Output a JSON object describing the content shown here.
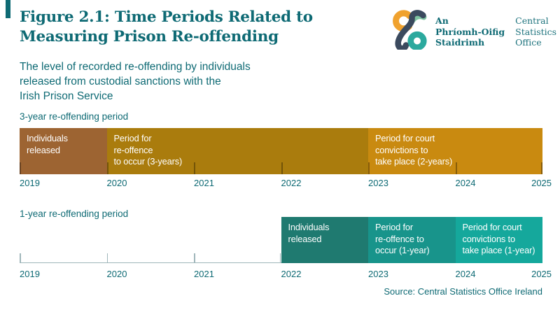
{
  "theme": {
    "teal": "#0E6A74",
    "teal_light": "#1D737D",
    "axis_color": "#9FB6BA",
    "bar_text_color": "#FFFFFF"
  },
  "header": {
    "title_line1": "Figure 2.1: Time Periods Related to",
    "title_line2": "Measuring Prison Re-offending",
    "subtitle_lines": [
      "The level of recorded re-offending by individuals",
      "released from custodial sanctions with the",
      "Irish Prison Service"
    ]
  },
  "logo": {
    "irish_lines": [
      "An",
      "Phríomh-Oifig",
      "Staidrimh"
    ],
    "english_lines": [
      "Central",
      "Statistics",
      "Office"
    ],
    "colors": {
      "orange": "#F0A22E",
      "navy": "#3B4A5E",
      "green": "#7FC4A1",
      "teal": "#2BA99E"
    }
  },
  "chart_data": {
    "type": "timeline-gantt",
    "title": "Figure 2.1: Time Periods Related to Measuring Prison Re-offending",
    "x_axis": {
      "range": [
        2019,
        2025
      ],
      "ticks": [
        2019,
        2020,
        2021,
        2022,
        2023,
        2024,
        2025
      ],
      "grid": false
    },
    "rows": [
      {
        "label": "3-year re-offending period",
        "ticks_on_bar": true,
        "segments": [
          {
            "label": "Individuals released",
            "lines": [
              "Individuals",
              "released"
            ],
            "start": 2019,
            "end": 2020,
            "color": "#9D6432"
          },
          {
            "label": "Period for re-offence to occur (3-years)",
            "lines": [
              "Period for",
              "re-offence",
              "to occur (3-years)"
            ],
            "start": 2020,
            "end": 2023,
            "color": "#AA7C0D"
          },
          {
            "label": "Period for court convictions to take place (2-years)",
            "lines": [
              "Period for court",
              "convictions to",
              "take place (2-years)"
            ],
            "start": 2023,
            "end": 2025,
            "color": "#C98A10"
          }
        ]
      },
      {
        "label": "1-year re-offending period",
        "ticks_on_bar": false,
        "axis_line_to": 2022,
        "segments": [
          {
            "label": "Individuals released",
            "lines": [
              "Individuals",
              "released"
            ],
            "start": 2022,
            "end": 2023,
            "color": "#1F7A70"
          },
          {
            "label": "Period for re-offence to occur (1-year)",
            "lines": [
              "Period for",
              "re-offence to",
              "occur (1-year)"
            ],
            "start": 2023,
            "end": 2024,
            "color": "#18948B"
          },
          {
            "label": "Period for court convictions to take place (1-year)",
            "lines": [
              "Period for court",
              "convictions to",
              "take place (1-year)"
            ],
            "start": 2024,
            "end": 2025,
            "color": "#15A89C"
          }
        ]
      }
    ],
    "source": "Source: Central Statistics Office Ireland"
  }
}
